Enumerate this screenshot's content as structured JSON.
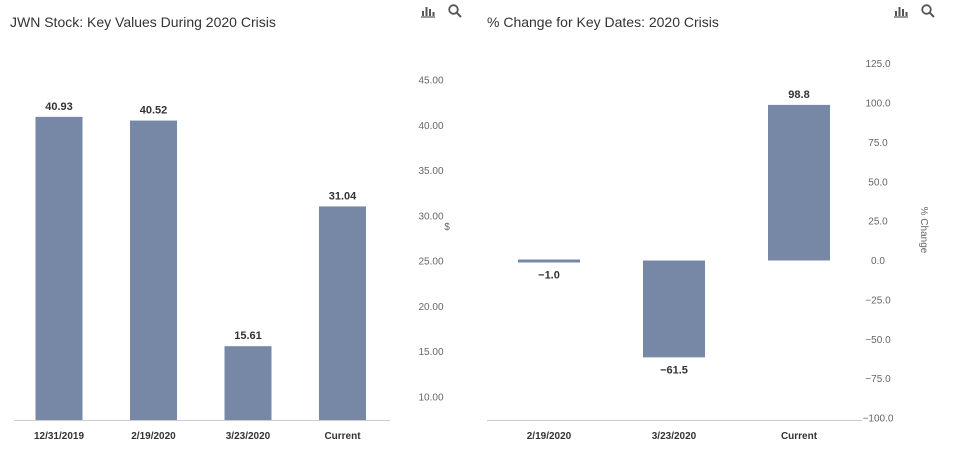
{
  "chart_data": [
    {
      "type": "bar",
      "title": "JWN Stock: Key Values During 2020 Crisis",
      "categories": [
        "12/31/2019",
        "2/19/2020",
        "3/23/2020",
        "Current"
      ],
      "values": [
        40.93,
        40.52,
        15.61,
        31.04
      ],
      "data_labels": [
        "40.93",
        "40.52",
        "15.61",
        "31.04"
      ],
      "ylabel": "$",
      "y_ticks": [
        "10.00",
        "15.00",
        "20.00",
        "25.00",
        "30.00",
        "35.00",
        "40.00",
        "45.00"
      ],
      "y_axis_side": "right",
      "grid": false,
      "bar_color": "#7788a6"
    },
    {
      "type": "bar",
      "title": "% Change for Key Dates: 2020 Crisis",
      "categories": [
        "2/19/2020",
        "3/23/2020",
        "Current"
      ],
      "values": [
        -1.0,
        -61.5,
        98.8
      ],
      "data_labels": [
        "-1.0",
        "-61.5",
        "98.8"
      ],
      "ylabel": "% Change",
      "y_ticks": [
        "-100.0",
        "-75.0",
        "-50.0",
        "-25.0",
        "0.0",
        "25.0",
        "50.0",
        "75.0",
        "100.0",
        "125.0"
      ],
      "y_axis_side": "right",
      "grid": false,
      "bar_color": "#7788a6"
    }
  ],
  "toolbar": {
    "chart_icon": "bar-chart-icon",
    "search_icon": "magnifier-icon"
  },
  "colors": {
    "bar": "#7788a6",
    "text": "#333333",
    "tick": "#666666",
    "axis": "#cccccc"
  }
}
